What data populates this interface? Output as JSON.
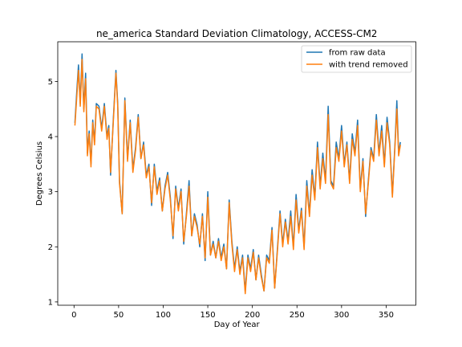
{
  "chart_data": {
    "type": "line",
    "title": "ne_america Standard Deviation Climatology, ACCESS-CM2",
    "xlabel": "Day of Year",
    "ylabel": "Degrees Celsius",
    "xlim": [
      -18.25,
      383.25
    ],
    "ylim": [
      0.94,
      5.72
    ],
    "xticks": [
      0,
      50,
      100,
      150,
      200,
      250,
      300,
      350
    ],
    "yticks": [
      1,
      2,
      3,
      4,
      5
    ],
    "grid": false,
    "legend_position": "top-right",
    "series": [
      {
        "name": "from raw data",
        "color": "#1f77b4",
        "x": [
          1,
          3,
          5,
          7,
          9,
          11,
          13,
          15,
          17,
          19,
          21,
          23,
          25,
          28,
          31,
          34,
          37,
          39,
          41,
          44,
          47,
          49,
          51,
          54,
          57,
          60,
          63,
          66,
          69,
          72,
          75,
          78,
          81,
          84,
          87,
          90,
          93,
          96,
          99,
          102,
          105,
          108,
          111,
          114,
          117,
          120,
          123,
          126,
          129,
          132,
          135,
          138,
          141,
          144,
          147,
          150,
          153,
          156,
          159,
          162,
          165,
          168,
          171,
          174,
          177,
          180,
          183,
          186,
          189,
          192,
          195,
          198,
          201,
          204,
          207,
          210,
          213,
          216,
          219,
          222,
          225,
          228,
          231,
          234,
          237,
          240,
          243,
          246,
          249,
          252,
          255,
          258,
          261,
          264,
          267,
          270,
          273,
          276,
          279,
          282,
          285,
          288,
          291,
          294,
          297,
          300,
          303,
          306,
          309,
          312,
          315,
          318,
          321,
          324,
          327,
          330,
          333,
          336,
          339,
          342,
          345,
          348,
          351,
          354,
          357,
          360,
          362,
          364,
          366
        ],
        "values": [
          4.25,
          4.8,
          5.3,
          4.6,
          5.5,
          4.5,
          5.15,
          3.7,
          4.1,
          3.5,
          4.3,
          3.9,
          4.6,
          4.55,
          4.15,
          4.6,
          4.0,
          4.2,
          3.3,
          4.3,
          5.2,
          4.6,
          3.2,
          2.6,
          4.7,
          3.6,
          4.3,
          3.4,
          3.8,
          4.4,
          3.6,
          3.9,
          3.3,
          3.5,
          2.75,
          3.5,
          3.0,
          3.25,
          2.65,
          3.1,
          3.35,
          2.9,
          2.15,
          3.1,
          2.7,
          3.05,
          2.05,
          2.6,
          3.2,
          2.2,
          2.6,
          2.4,
          2.0,
          2.6,
          1.75,
          3.0,
          1.85,
          2.1,
          1.8,
          2.15,
          1.8,
          2.05,
          1.6,
          2.85,
          2.1,
          1.6,
          2.0,
          1.55,
          1.85,
          1.2,
          1.85,
          1.6,
          1.95,
          1.4,
          1.85,
          1.5,
          1.2,
          1.85,
          1.75,
          2.35,
          1.25,
          1.95,
          2.65,
          2.05,
          2.5,
          2.1,
          2.65,
          2.0,
          2.95,
          2.3,
          2.7,
          2.0,
          3.2,
          2.6,
          3.4,
          2.9,
          3.9,
          3.1,
          3.7,
          3.2,
          4.55,
          3.2,
          3.1,
          3.9,
          3.6,
          4.2,
          3.5,
          3.9,
          3.2,
          4.05,
          3.7,
          4.3,
          3.05,
          3.6,
          2.55,
          3.2,
          3.8,
          3.6,
          4.4,
          3.7,
          4.2,
          3.5,
          4.35,
          3.9,
          2.95,
          3.9,
          4.65,
          3.7,
          3.9
        ]
      },
      {
        "name": "with trend removed",
        "color": "#ff7f0e",
        "x": [
          1,
          3,
          5,
          7,
          9,
          11,
          13,
          15,
          17,
          19,
          21,
          23,
          25,
          28,
          31,
          34,
          37,
          39,
          41,
          44,
          47,
          49,
          51,
          54,
          57,
          60,
          63,
          66,
          69,
          72,
          75,
          78,
          81,
          84,
          87,
          90,
          93,
          96,
          99,
          102,
          105,
          108,
          111,
          114,
          117,
          120,
          123,
          126,
          129,
          132,
          135,
          138,
          141,
          144,
          147,
          150,
          153,
          156,
          159,
          162,
          165,
          168,
          171,
          174,
          177,
          180,
          183,
          186,
          189,
          192,
          195,
          198,
          201,
          204,
          207,
          210,
          213,
          216,
          219,
          222,
          225,
          228,
          231,
          234,
          237,
          240,
          243,
          246,
          249,
          252,
          255,
          258,
          261,
          264,
          267,
          270,
          273,
          276,
          279,
          282,
          285,
          288,
          291,
          294,
          297,
          300,
          303,
          306,
          309,
          312,
          315,
          318,
          321,
          324,
          327,
          330,
          333,
          336,
          339,
          342,
          345,
          348,
          351,
          354,
          357,
          360,
          362,
          364,
          366
        ],
        "values": [
          4.2,
          4.7,
          5.2,
          4.55,
          5.4,
          4.45,
          5.05,
          3.65,
          4.05,
          3.45,
          4.25,
          3.85,
          4.55,
          4.5,
          4.1,
          4.55,
          3.95,
          4.15,
          3.35,
          4.25,
          5.15,
          4.55,
          3.15,
          2.6,
          4.65,
          3.55,
          4.25,
          3.35,
          3.75,
          4.35,
          3.6,
          3.85,
          3.25,
          3.45,
          2.8,
          3.45,
          2.95,
          3.2,
          2.65,
          3.05,
          3.3,
          2.85,
          2.2,
          3.05,
          2.65,
          3.0,
          2.1,
          2.55,
          3.1,
          2.2,
          2.55,
          2.35,
          2.05,
          2.55,
          1.8,
          2.9,
          1.85,
          2.05,
          1.8,
          2.1,
          1.75,
          2.0,
          1.6,
          2.8,
          2.05,
          1.55,
          1.95,
          1.5,
          1.8,
          1.15,
          1.8,
          1.55,
          1.9,
          1.4,
          1.8,
          1.45,
          1.2,
          1.8,
          1.7,
          2.3,
          1.25,
          1.9,
          2.6,
          2.0,
          2.45,
          2.05,
          2.55,
          1.95,
          2.85,
          2.25,
          2.65,
          1.95,
          3.1,
          2.55,
          3.3,
          2.85,
          3.8,
          3.05,
          3.6,
          3.15,
          4.4,
          3.15,
          3.05,
          3.8,
          3.55,
          4.1,
          3.45,
          3.85,
          3.15,
          3.95,
          3.65,
          4.2,
          3.0,
          3.55,
          2.6,
          3.15,
          3.75,
          3.55,
          4.3,
          3.65,
          4.1,
          3.45,
          4.25,
          3.85,
          2.9,
          3.85,
          4.5,
          3.65,
          3.85
        ]
      }
    ]
  }
}
